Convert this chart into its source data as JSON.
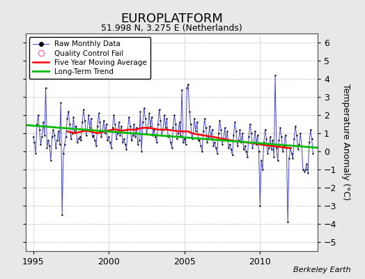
{
  "title": "EUROPLATFORM",
  "subtitle": "51.998 N, 3.275 E (Netherlands)",
  "ylabel": "Temperature Anomaly (°C)",
  "watermark": "Berkeley Earth",
  "ylim": [
    -5.5,
    6.5
  ],
  "yticks": [
    -5,
    -4,
    -3,
    -2,
    -1,
    0,
    1,
    2,
    3,
    4,
    5,
    6
  ],
  "xlim": [
    1994.5,
    2013.8
  ],
  "xticks": [
    1995,
    2000,
    2005,
    2010
  ],
  "bg_color": "#e8e8e8",
  "plot_bg_color": "#ffffff",
  "grid_color": "#bbbbbb",
  "raw_color": "#4444cc",
  "dot_color": "#000000",
  "ma_color": "#ff0000",
  "trend_color": "#00bb00",
  "qc_color": "#ff69b4",
  "raw_linewidth": 0.7,
  "ma_linewidth": 1.8,
  "trend_linewidth": 2.0,
  "dot_size": 3,
  "raw_data": {
    "times": [
      1995.0,
      1995.083,
      1995.167,
      1995.25,
      1995.333,
      1995.417,
      1995.5,
      1995.583,
      1995.667,
      1995.75,
      1995.833,
      1995.917,
      1996.0,
      1996.083,
      1996.167,
      1996.25,
      1996.333,
      1996.417,
      1996.5,
      1996.583,
      1996.667,
      1996.75,
      1996.833,
      1996.917,
      1997.0,
      1997.083,
      1997.167,
      1997.25,
      1997.333,
      1997.417,
      1997.5,
      1997.583,
      1997.667,
      1997.75,
      1997.833,
      1997.917,
      1998.0,
      1998.083,
      1998.167,
      1998.25,
      1998.333,
      1998.417,
      1998.5,
      1998.583,
      1998.667,
      1998.75,
      1998.833,
      1998.917,
      1999.0,
      1999.083,
      1999.167,
      1999.25,
      1999.333,
      1999.417,
      1999.5,
      1999.583,
      1999.667,
      1999.75,
      1999.833,
      1999.917,
      2000.0,
      2000.083,
      2000.167,
      2000.25,
      2000.333,
      2000.417,
      2000.5,
      2000.583,
      2000.667,
      2000.75,
      2000.833,
      2000.917,
      2001.0,
      2001.083,
      2001.167,
      2001.25,
      2001.333,
      2001.417,
      2001.5,
      2001.583,
      2001.667,
      2001.75,
      2001.833,
      2001.917,
      2002.0,
      2002.083,
      2002.167,
      2002.25,
      2002.333,
      2002.417,
      2002.5,
      2002.583,
      2002.667,
      2002.75,
      2002.833,
      2002.917,
      2003.0,
      2003.083,
      2003.167,
      2003.25,
      2003.333,
      2003.417,
      2003.5,
      2003.583,
      2003.667,
      2003.75,
      2003.833,
      2003.917,
      2004.0,
      2004.083,
      2004.167,
      2004.25,
      2004.333,
      2004.417,
      2004.5,
      2004.583,
      2004.667,
      2004.75,
      2004.833,
      2004.917,
      2005.0,
      2005.083,
      2005.167,
      2005.25,
      2005.333,
      2005.417,
      2005.5,
      2005.583,
      2005.667,
      2005.75,
      2005.833,
      2005.917,
      2006.0,
      2006.083,
      2006.167,
      2006.25,
      2006.333,
      2006.417,
      2006.5,
      2006.583,
      2006.667,
      2006.75,
      2006.833,
      2006.917,
      2007.0,
      2007.083,
      2007.167,
      2007.25,
      2007.333,
      2007.417,
      2007.5,
      2007.583,
      2007.667,
      2007.75,
      2007.833,
      2007.917,
      2008.0,
      2008.083,
      2008.167,
      2008.25,
      2008.333,
      2008.417,
      2008.5,
      2008.583,
      2008.667,
      2008.75,
      2008.833,
      2008.917,
      2009.0,
      2009.083,
      2009.167,
      2009.25,
      2009.333,
      2009.417,
      2009.5,
      2009.583,
      2009.667,
      2009.75,
      2009.833,
      2009.917,
      2010.0,
      2010.083,
      2010.167,
      2010.25,
      2010.333,
      2010.417,
      2010.5,
      2010.583,
      2010.667,
      2010.75,
      2010.833,
      2010.917,
      2011.0,
      2011.083,
      2011.167,
      2011.25,
      2011.333,
      2011.417,
      2011.5,
      2011.583,
      2011.667,
      2011.75,
      2011.833,
      2011.917,
      2012.0,
      2012.083,
      2012.167,
      2012.25,
      2012.333,
      2012.417,
      2012.5,
      2012.583,
      2012.667,
      2012.75,
      2012.833,
      2012.917,
      2013.0,
      2013.083,
      2013.167,
      2013.25,
      2013.333,
      2013.417,
      2013.5
    ],
    "values": [
      0.8,
      0.5,
      -0.1,
      1.5,
      2.0,
      1.2,
      0.4,
      0.8,
      1.6,
      0.9,
      3.5,
      0.2,
      0.6,
      0.3,
      -0.5,
      0.8,
      1.2,
      0.9,
      0.2,
      0.6,
      1.1,
      0.4,
      2.7,
      -3.5,
      -0.1,
      0.4,
      0.8,
      1.8,
      2.2,
      1.5,
      0.7,
      1.0,
      1.9,
      1.1,
      1.4,
      0.5,
      0.7,
      0.8,
      0.6,
      1.6,
      2.3,
      1.7,
      0.9,
      1.2,
      2.0,
      1.3,
      1.8,
      0.8,
      0.9,
      0.6,
      0.3,
      1.4,
      2.1,
      1.6,
      0.8,
      1.1,
      1.7,
      1.0,
      1.5,
      0.6,
      0.8,
      0.5,
      0.2,
      1.3,
      2.0,
      1.5,
      0.7,
      1.0,
      1.6,
      0.9,
      1.4,
      0.5,
      0.7,
      0.4,
      0.1,
      1.2,
      1.9,
      1.4,
      0.6,
      0.9,
      1.5,
      0.8,
      1.3,
      0.4,
      0.6,
      2.2,
      0.0,
      1.6,
      2.4,
      1.8,
      1.0,
      1.3,
      2.1,
      1.4,
      1.9,
      0.9,
      1.2,
      0.8,
      0.5,
      1.5,
      2.3,
      1.7,
      0.9,
      1.2,
      2.0,
      1.3,
      1.8,
      0.8,
      0.9,
      0.5,
      0.2,
      1.3,
      2.0,
      1.5,
      0.7,
      1.0,
      1.6,
      0.9,
      3.4,
      0.5,
      0.7,
      0.4,
      3.5,
      3.7,
      2.2,
      1.5,
      0.7,
      1.0,
      1.8,
      1.1,
      1.6,
      0.6,
      0.6,
      0.3,
      0.0,
      1.1,
      1.8,
      1.3,
      0.5,
      0.8,
      1.4,
      0.7,
      1.2,
      0.3,
      0.5,
      0.2,
      -0.1,
      1.0,
      1.7,
      1.2,
      0.4,
      0.7,
      1.3,
      0.6,
      1.1,
      0.2,
      0.4,
      0.1,
      -0.2,
      0.9,
      1.6,
      1.1,
      0.3,
      0.6,
      1.2,
      0.5,
      1.0,
      0.1,
      0.3,
      0.0,
      -0.3,
      0.8,
      1.5,
      1.0,
      0.2,
      0.5,
      1.1,
      0.4,
      0.9,
      0.0,
      -3.0,
      -0.5,
      -1.0,
      0.5,
      1.2,
      0.7,
      -0.1,
      0.2,
      0.8,
      0.1,
      0.6,
      -0.3,
      4.2,
      0.2,
      -0.5,
      0.6,
      1.3,
      0.8,
      0.0,
      0.3,
      0.9,
      0.2,
      -3.9,
      -0.4,
      0.2,
      -0.1,
      -0.4,
      0.7,
      1.4,
      0.9,
      0.1,
      0.4,
      1.0,
      0.3,
      -1.0,
      -1.1,
      -1.0,
      -0.7,
      -1.2,
      0.5,
      1.2,
      0.7,
      -0.1
    ]
  },
  "ma_data": {
    "times": [
      1997.25,
      1997.5,
      1997.75,
      1998.0,
      1998.25,
      1998.5,
      1998.75,
      1999.0,
      1999.25,
      1999.5,
      1999.75,
      2000.0,
      2000.25,
      2000.5,
      2000.75,
      2001.0,
      2001.25,
      2001.5,
      2001.75,
      2002.0,
      2002.25,
      2002.5,
      2002.75,
      2003.0,
      2003.25,
      2003.5,
      2003.75,
      2004.0,
      2004.25,
      2004.5,
      2004.75,
      2005.0,
      2005.25,
      2005.5,
      2005.75,
      2006.0,
      2006.25,
      2006.5,
      2006.75,
      2007.0,
      2007.25,
      2007.5,
      2007.75,
      2008.0,
      2008.25,
      2008.5,
      2008.75,
      2009.0,
      2009.25,
      2009.5,
      2009.75,
      2010.0,
      2010.25,
      2010.5,
      2010.75,
      2011.0,
      2011.25,
      2011.5,
      2011.75,
      2012.0
    ],
    "values": [
      1.1,
      1.05,
      1.0,
      1.05,
      1.1,
      1.15,
      1.1,
      1.05,
      1.0,
      1.05,
      1.1,
      1.15,
      1.2,
      1.2,
      1.15,
      1.15,
      1.2,
      1.2,
      1.2,
      1.25,
      1.3,
      1.3,
      1.28,
      1.25,
      1.2,
      1.2,
      1.2,
      1.18,
      1.15,
      1.12,
      1.1,
      1.1,
      1.1,
      1.0,
      0.95,
      0.92,
      0.88,
      0.85,
      0.82,
      0.78,
      0.74,
      0.7,
      0.66,
      0.62,
      0.58,
      0.55,
      0.52,
      0.5,
      0.48,
      0.45,
      0.42,
      0.38,
      0.35,
      0.32,
      0.3,
      0.28,
      0.25,
      0.22,
      0.2,
      0.18
    ]
  },
  "trend_data": {
    "times": [
      1994.5,
      2013.8
    ],
    "values": [
      1.45,
      0.2
    ]
  }
}
